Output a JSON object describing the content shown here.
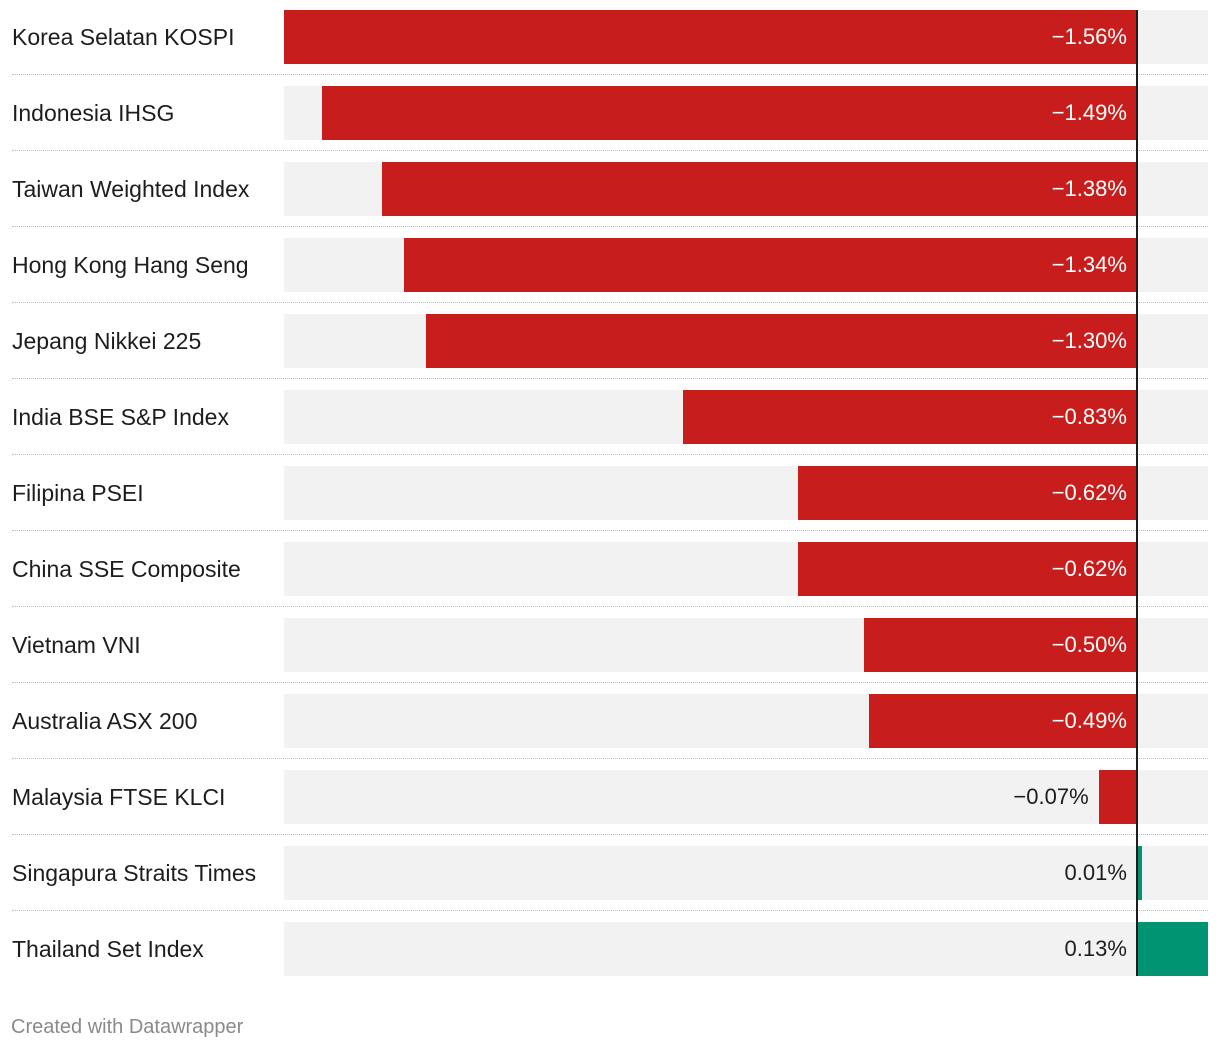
{
  "chart_data": {
    "type": "bar",
    "orientation": "horizontal",
    "categories": [
      "Korea Selatan KOSPI",
      "Indonesia IHSG",
      "Taiwan Weighted Index",
      "Hong Kong Hang Seng",
      "Jepang Nikkei 225",
      "India BSE S&P Index",
      "Filipina PSEI",
      "China SSE Composite",
      "Vietnam VNI",
      "Australia ASX 200",
      "Malaysia FTSE KLCI",
      "Singapura Straits Times",
      "Thailand Set Index"
    ],
    "values": [
      -1.56,
      -1.49,
      -1.38,
      -1.34,
      -1.3,
      -0.83,
      -0.62,
      -0.62,
      -0.5,
      -0.49,
      -0.07,
      0.01,
      0.13
    ],
    "value_labels": [
      "−1.56%",
      "−1.49%",
      "−1.38%",
      "−1.34%",
      "−1.30%",
      "−0.83%",
      "−0.62%",
      "−0.62%",
      "−0.50%",
      "−0.49%",
      "−0.07%",
      "0.01%",
      "0.13%"
    ],
    "xlim": [
      -1.56,
      0.13
    ],
    "grid": false,
    "colors": {
      "negative": "#c71e1d",
      "positive": "#009473",
      "background_bar": "#f2f2f2",
      "zero_line": "#1d1d1d"
    }
  },
  "footer": {
    "credit": "Created with Datawrapper"
  }
}
